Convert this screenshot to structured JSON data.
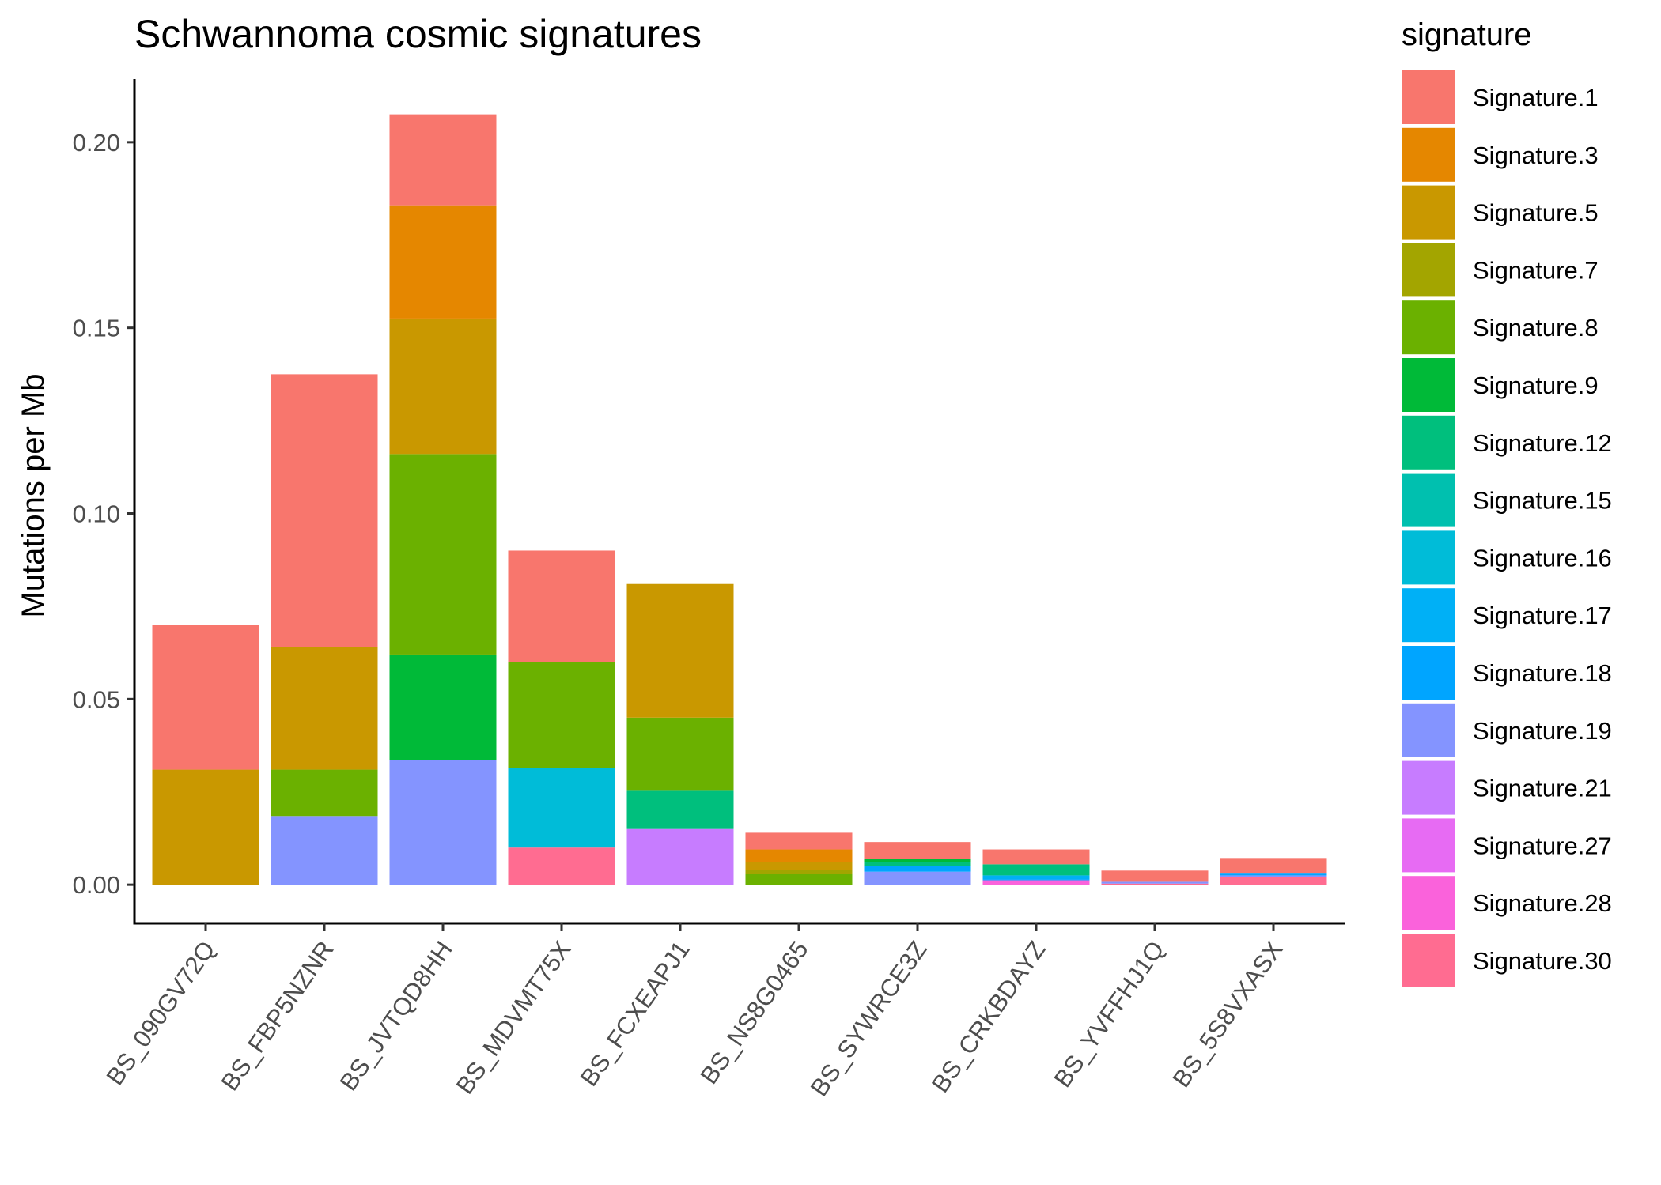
{
  "chart_data": {
    "type": "bar",
    "stacked": true,
    "title": "Schwannoma cosmic signatures",
    "xlabel": "",
    "ylabel": "Mutations per Mb",
    "ylim": [
      -0.0104,
      0.217
    ],
    "yticks": [
      "0.00",
      "0.05",
      "0.10",
      "0.15",
      "0.20"
    ],
    "ytick_values": [
      0,
      0.05,
      0.1,
      0.15,
      0.2
    ],
    "grid": false,
    "legend_title": "signature",
    "legend_position": "right",
    "categories": [
      "BS_090GV72Q",
      "BS_FBP5NZNR",
      "BS_JVTQD8HH",
      "BS_MDVMT75X",
      "BS_FCXEAPJ1",
      "BS_NS8G0465",
      "BS_SYWRCE3Z",
      "BS_CRKBDAYZ",
      "BS_YVFFHJ1Q",
      "BS_5S8VXASX"
    ],
    "series": [
      {
        "name": "Signature.1",
        "color": "#F8766D",
        "values": [
          0.039,
          0.0735,
          0.0245,
          0.03,
          0,
          0.0045,
          0.0045,
          0.004,
          0.003,
          0.004
        ]
      },
      {
        "name": "Signature.3",
        "color": "#E58700",
        "values": [
          0,
          0,
          0.0305,
          0,
          0,
          0.0035,
          0,
          0,
          0,
          0
        ]
      },
      {
        "name": "Signature.5",
        "color": "#C99800",
        "values": [
          0.031,
          0.033,
          0.0365,
          0,
          0.036,
          0.002,
          0,
          0,
          0,
          0
        ]
      },
      {
        "name": "Signature.7",
        "color": "#A3A500",
        "values": [
          0,
          0,
          0,
          0,
          0,
          0.001,
          0,
          0,
          0,
          0
        ]
      },
      {
        "name": "Signature.8",
        "color": "#6BB100",
        "values": [
          0,
          0.0125,
          0.054,
          0.0285,
          0.0195,
          0.003,
          0,
          0,
          0,
          0
        ]
      },
      {
        "name": "Signature.9",
        "color": "#00BA38",
        "values": [
          0,
          0,
          0.0285,
          0,
          0,
          0,
          0.0008,
          0,
          0,
          0
        ]
      },
      {
        "name": "Signature.12",
        "color": "#00BF7D",
        "values": [
          0,
          0,
          0,
          0,
          0.0105,
          0,
          0.0012,
          0.003,
          0,
          0
        ]
      },
      {
        "name": "Signature.15",
        "color": "#00C0AF",
        "values": [
          0,
          0,
          0,
          0,
          0,
          0,
          0,
          0,
          0,
          0
        ]
      },
      {
        "name": "Signature.16",
        "color": "#00BCD8",
        "values": [
          0,
          0,
          0,
          0.0215,
          0,
          0,
          0,
          0,
          0,
          0
        ]
      },
      {
        "name": "Signature.17",
        "color": "#00B0F6",
        "values": [
          0,
          0,
          0,
          0,
          0,
          0,
          0,
          0.001,
          0,
          0
        ]
      },
      {
        "name": "Signature.18",
        "color": "#00A5FF",
        "values": [
          0,
          0,
          0,
          0,
          0,
          0,
          0.0015,
          0.0003,
          0,
          0.0007
        ]
      },
      {
        "name": "Signature.19",
        "color": "#8494FF",
        "values": [
          0,
          0.0185,
          0.0335,
          0,
          0,
          0,
          0.0035,
          0,
          0.0005,
          0.0005
        ]
      },
      {
        "name": "Signature.21",
        "color": "#C77CFF",
        "values": [
          0,
          0,
          0,
          0,
          0.015,
          0,
          0,
          0,
          0,
          0
        ]
      },
      {
        "name": "Signature.27",
        "color": "#E76BF3",
        "values": [
          0,
          0,
          0,
          0,
          0,
          0,
          0,
          0,
          0,
          0
        ]
      },
      {
        "name": "Signature.28",
        "color": "#FA62DB",
        "values": [
          0,
          0,
          0,
          0,
          0,
          0,
          0,
          0.0012,
          0,
          0
        ]
      },
      {
        "name": "Signature.30",
        "color": "#FF6C91",
        "values": [
          0,
          0,
          0,
          0.01,
          0,
          0,
          0,
          0,
          0.0003,
          0.002
        ]
      }
    ]
  }
}
